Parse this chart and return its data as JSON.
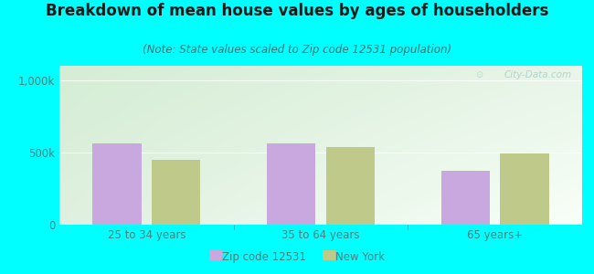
{
  "title": "Breakdown of mean house values by ages of householders",
  "subtitle": "(Note: State values scaled to Zip code 12531 population)",
  "categories": [
    "25 to 34 years",
    "35 to 64 years",
    "65 years+"
  ],
  "zip_values": [
    560000,
    560000,
    370000
  ],
  "ny_values": [
    450000,
    540000,
    490000
  ],
  "ylim": [
    0,
    1100000
  ],
  "ytick_vals": [
    0,
    500000,
    1000000
  ],
  "ytick_labels": [
    "0",
    "500k",
    "1,000k"
  ],
  "zip_color": "#c9a8e0",
  "ny_color": "#bec98a",
  "background_color": "#00ffff",
  "plot_bg_topleft": "#d4edd4",
  "plot_bg_right": "#eef8ee",
  "plot_bg_bottom": "#f0f8e8",
  "legend_zip": "Zip code 12531",
  "legend_ny": "New York",
  "bar_width": 0.28,
  "title_fontsize": 12,
  "subtitle_fontsize": 8.5,
  "tick_fontsize": 8.5,
  "tick_color": "#4a8080",
  "subtitle_color": "#3a7070",
  "watermark": "City-Data.com",
  "watermark_color": "#a0c8c8"
}
